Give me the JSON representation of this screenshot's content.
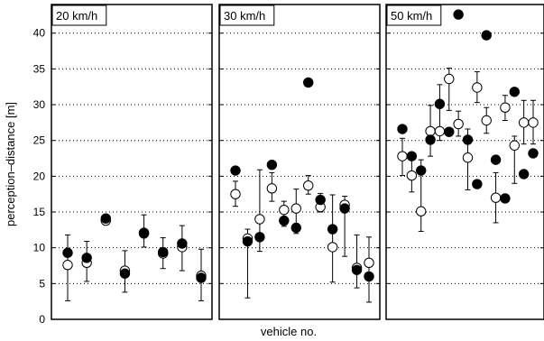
{
  "chart_data": {
    "type": "scatter",
    "xlabel": "vehicle no.",
    "ylabel": "perception–distance [m]",
    "ylim": [
      0,
      44
    ],
    "yticks": [
      0,
      5,
      10,
      15,
      20,
      25,
      30,
      35,
      40
    ],
    "grid": "horizontal dotted",
    "marker_filled": "filled circle",
    "marker_open": "open circle with error bar",
    "panels": [
      {
        "label": "20 km/h",
        "vehicles": [
          {
            "filled": 9.3,
            "open": 7.6,
            "err": [
              2.6,
              11.8
            ]
          },
          {
            "filled": 8.6,
            "open": 7.9,
            "err": [
              5.3,
              10.9
            ]
          },
          {
            "filled": 14.1,
            "open": 13.8,
            "err": [
              13.3,
              14.6
            ]
          },
          {
            "filled": 6.4,
            "open": 6.8,
            "err": [
              3.8,
              9.6
            ]
          },
          {
            "filled": 12.1,
            "open": 12.0,
            "err": [
              10.1,
              14.6
            ]
          },
          {
            "filled": 9.4,
            "open": 9.2,
            "err": [
              7.1,
              11.4
            ]
          },
          {
            "filled": 10.6,
            "open": 10.1,
            "err": [
              6.8,
              13.1
            ]
          },
          {
            "filled": 5.8,
            "open": 6.1,
            "err": [
              2.6,
              9.8
            ]
          }
        ]
      },
      {
        "label": "30 km/h",
        "vehicles": [
          {
            "filled": 20.8,
            "open": 17.5,
            "err": [
              15.8,
              19.3
            ]
          },
          {
            "filled": 10.9,
            "open": 11.3,
            "err": [
              3.0,
              12.6
            ]
          },
          {
            "filled": 11.5,
            "open": 14.0,
            "err": [
              9.5,
              20.9
            ]
          },
          {
            "filled": 21.6,
            "open": 18.3,
            "err": [
              16.5,
              20.5
            ]
          },
          {
            "filled": 13.8,
            "open": 15.3,
            "err": [
              13.0,
              16.5
            ]
          },
          {
            "filled": 12.8,
            "open": 15.5,
            "err": [
              12.0,
              18.2
            ]
          },
          {
            "filled": 33.1,
            "open": 18.7,
            "err": [
              17.5,
              20.1
            ]
          },
          {
            "filled": 16.7,
            "open": 15.7,
            "err": [
              15.0,
              17.6
            ]
          },
          {
            "filled": 12.6,
            "open": 10.1,
            "err": [
              5.2,
              17.4
            ]
          },
          {
            "filled": 15.5,
            "open": 16.0,
            "err": [
              8.8,
              17.2
            ]
          },
          {
            "filled": 6.9,
            "open": 7.2,
            "err": [
              4.4,
              11.8
            ]
          },
          {
            "filled": 6.0,
            "open": 7.9,
            "err": [
              2.4,
              11.5
            ]
          }
        ]
      },
      {
        "label": "50 km/h",
        "vehicles": [
          {
            "filled": 26.6,
            "open": 22.8,
            "err": [
              20.1,
              25.3
            ]
          },
          {
            "filled": 22.8,
            "open": 20.1,
            "err": [
              17.8,
              22.3
            ]
          },
          {
            "filled": 20.8,
            "open": 15.1,
            "err": [
              12.3,
              22.3
            ]
          },
          {
            "filled": 25.1,
            "open": 26.3,
            "err": [
              22.8,
              29.9
            ]
          },
          {
            "filled": 30.1,
            "open": 26.3,
            "err": [
              25.0,
              32.8
            ]
          },
          {
            "filled": 26.2,
            "open": 33.6,
            "err": [
              29.2,
              35.1
            ]
          },
          {
            "filled": 42.6,
            "open": 27.3,
            "err": [
              25.6,
              29.1
            ]
          },
          {
            "filled": 25.1,
            "open": 22.6,
            "err": [
              18.1,
              26.6
            ]
          },
          {
            "filled": 18.9,
            "open": 32.4,
            "err": [
              30.3,
              34.6
            ]
          },
          {
            "filled": 39.7,
            "open": 27.8,
            "err": [
              26.0,
              29.6
            ]
          },
          {
            "filled": 22.3,
            "open": 17.0,
            "err": [
              13.5,
              20.5
            ]
          },
          {
            "filled": 16.9,
            "open": 29.6,
            "err": [
              27.8,
              31.3
            ]
          },
          {
            "filled": 31.8,
            "open": 24.3,
            "err": [
              19.0,
              25.6
            ]
          },
          {
            "filled": 20.3,
            "open": 27.5,
            "err": [
              24.5,
              30.6
            ]
          },
          {
            "filled": 23.2,
            "open": 27.5,
            "err": [
              24.5,
              30.6
            ]
          }
        ]
      }
    ]
  }
}
